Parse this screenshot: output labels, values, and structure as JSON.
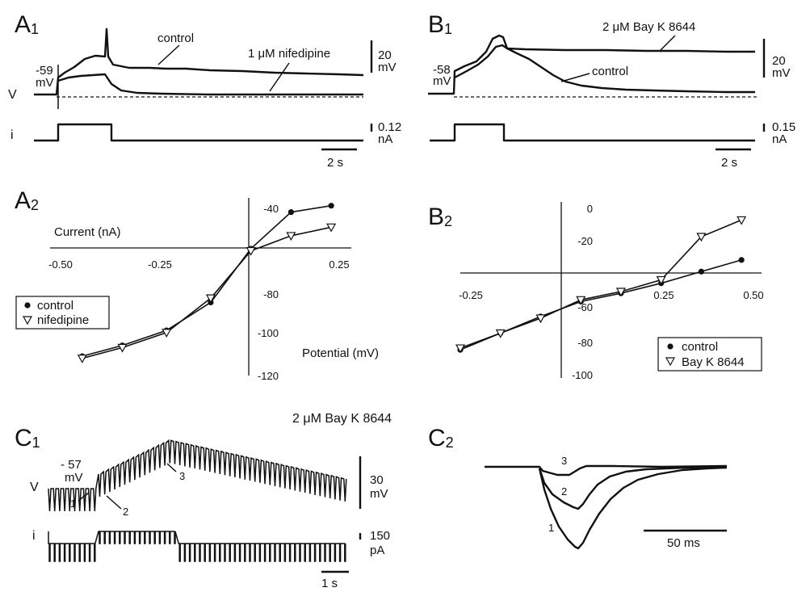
{
  "panels": {
    "A1": {
      "letter": "A",
      "sub": "1",
      "control": "control",
      "drug": "1 μM nifedipine",
      "rest": "-59",
      "rest_unit": "mV",
      "v": "V",
      "i": "i",
      "vscale": "20",
      "vscale_unit": "mV",
      "iscale": "0.12",
      "iscale_unit": "nA",
      "tscale": "2 s"
    },
    "B1": {
      "letter": "B",
      "sub": "1",
      "control": "control",
      "drug": "2 μM Bay K 8644",
      "rest": "-58",
      "rest_unit": "mV",
      "vscale": "20",
      "vscale_unit": "mV",
      "iscale": "0.15",
      "iscale_unit": "nA",
      "tscale": "2 s"
    },
    "A2": {
      "letter": "A",
      "sub": "2"
    },
    "B2": {
      "letter": "B",
      "sub": "2"
    },
    "C1": {
      "letter": "C",
      "sub": "1",
      "rest": "- 57",
      "rest_unit": "mV",
      "v": "V",
      "i": "i",
      "mark1": "1",
      "mark2": "2",
      "mark3": "3",
      "vscale": "30",
      "vscale_unit": "mV",
      "iscale": "150",
      "iscale_unit": "pA",
      "tscale": "1 s"
    },
    "C2": {
      "letter": "C",
      "sub": "2",
      "mark1": "1",
      "mark2": "2",
      "mark3": "3",
      "tscale": "50 ms"
    },
    "C_title": "2 μM Bay K 8644"
  },
  "chart_data": [
    {
      "type": "scatter",
      "panel": "A2",
      "xlabel": "Current (nA)",
      "ylabel": "Potential (mV)",
      "xlim": [
        -0.5,
        0.25
      ],
      "ylim": [
        -120,
        -40
      ],
      "x_ticks": [
        "-0.50",
        "-0.25",
        "0.25"
      ],
      "y_ticks": [
        "-40",
        "-80",
        "-100",
        "-120"
      ],
      "series": [
        {
          "name": "control",
          "marker": "circle",
          "x": [
            -0.42,
            -0.32,
            -0.21,
            -0.1,
            0,
            0.1,
            0.2
          ],
          "y": [
            -111,
            -106,
            -99,
            -86,
            -61,
            -44,
            -41
          ]
        },
        {
          "name": "nifedipine",
          "marker": "triangle",
          "x": [
            -0.42,
            -0.32,
            -0.21,
            -0.1,
            0,
            0.1,
            0.2
          ],
          "y": [
            -112,
            -107,
            -100,
            -84,
            -62,
            -55,
            -51
          ]
        }
      ],
      "legend": "bottom-left"
    },
    {
      "type": "scatter",
      "panel": "B2",
      "xlim": [
        -0.25,
        0.5
      ],
      "ylim": [
        -100,
        0
      ],
      "x_ticks": [
        "-0.25",
        "0.25",
        "0.50"
      ],
      "y_ticks": [
        "0",
        "-20",
        "-60",
        "-80",
        "-100"
      ],
      "series": [
        {
          "name": "control",
          "marker": "circle",
          "x": [
            -0.25,
            -0.15,
            -0.05,
            0.05,
            0.15,
            0.25,
            0.35,
            0.45
          ],
          "y": [
            -85,
            -75,
            -65,
            -56,
            -51,
            -45,
            -38,
            -31
          ]
        },
        {
          "name": "Bay K 8644",
          "marker": "triangle",
          "x": [
            -0.25,
            -0.15,
            -0.05,
            0.05,
            0.15,
            0.25,
            0.35,
            0.45
          ],
          "y": [
            -84,
            -75,
            -66,
            -55,
            -50,
            -43,
            -17,
            -7
          ]
        }
      ],
      "legend": "bottom-right"
    }
  ]
}
